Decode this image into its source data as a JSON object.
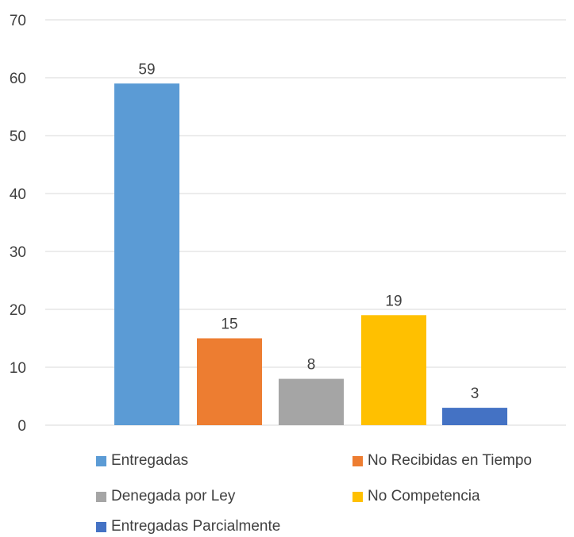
{
  "chart_data": {
    "type": "bar",
    "title": "",
    "xlabel": "",
    "ylabel": "",
    "ylim": [
      0,
      70
    ],
    "yticks": [
      0,
      10,
      20,
      30,
      40,
      50,
      60,
      70
    ],
    "grid": true,
    "legend_position": "bottom",
    "categories": [
      "Entregadas",
      "No Recibidas en Tiempo",
      "Denegada por Ley",
      "No Competencia",
      "Entregadas Parcialmente"
    ],
    "values": [
      59,
      15,
      8,
      19,
      3
    ],
    "colors": [
      "#5B9BD5",
      "#ED7D31",
      "#A5A5A5",
      "#FFC000",
      "#4472C4"
    ],
    "data_labels": [
      "59",
      "15",
      "8",
      "19",
      "3"
    ]
  }
}
